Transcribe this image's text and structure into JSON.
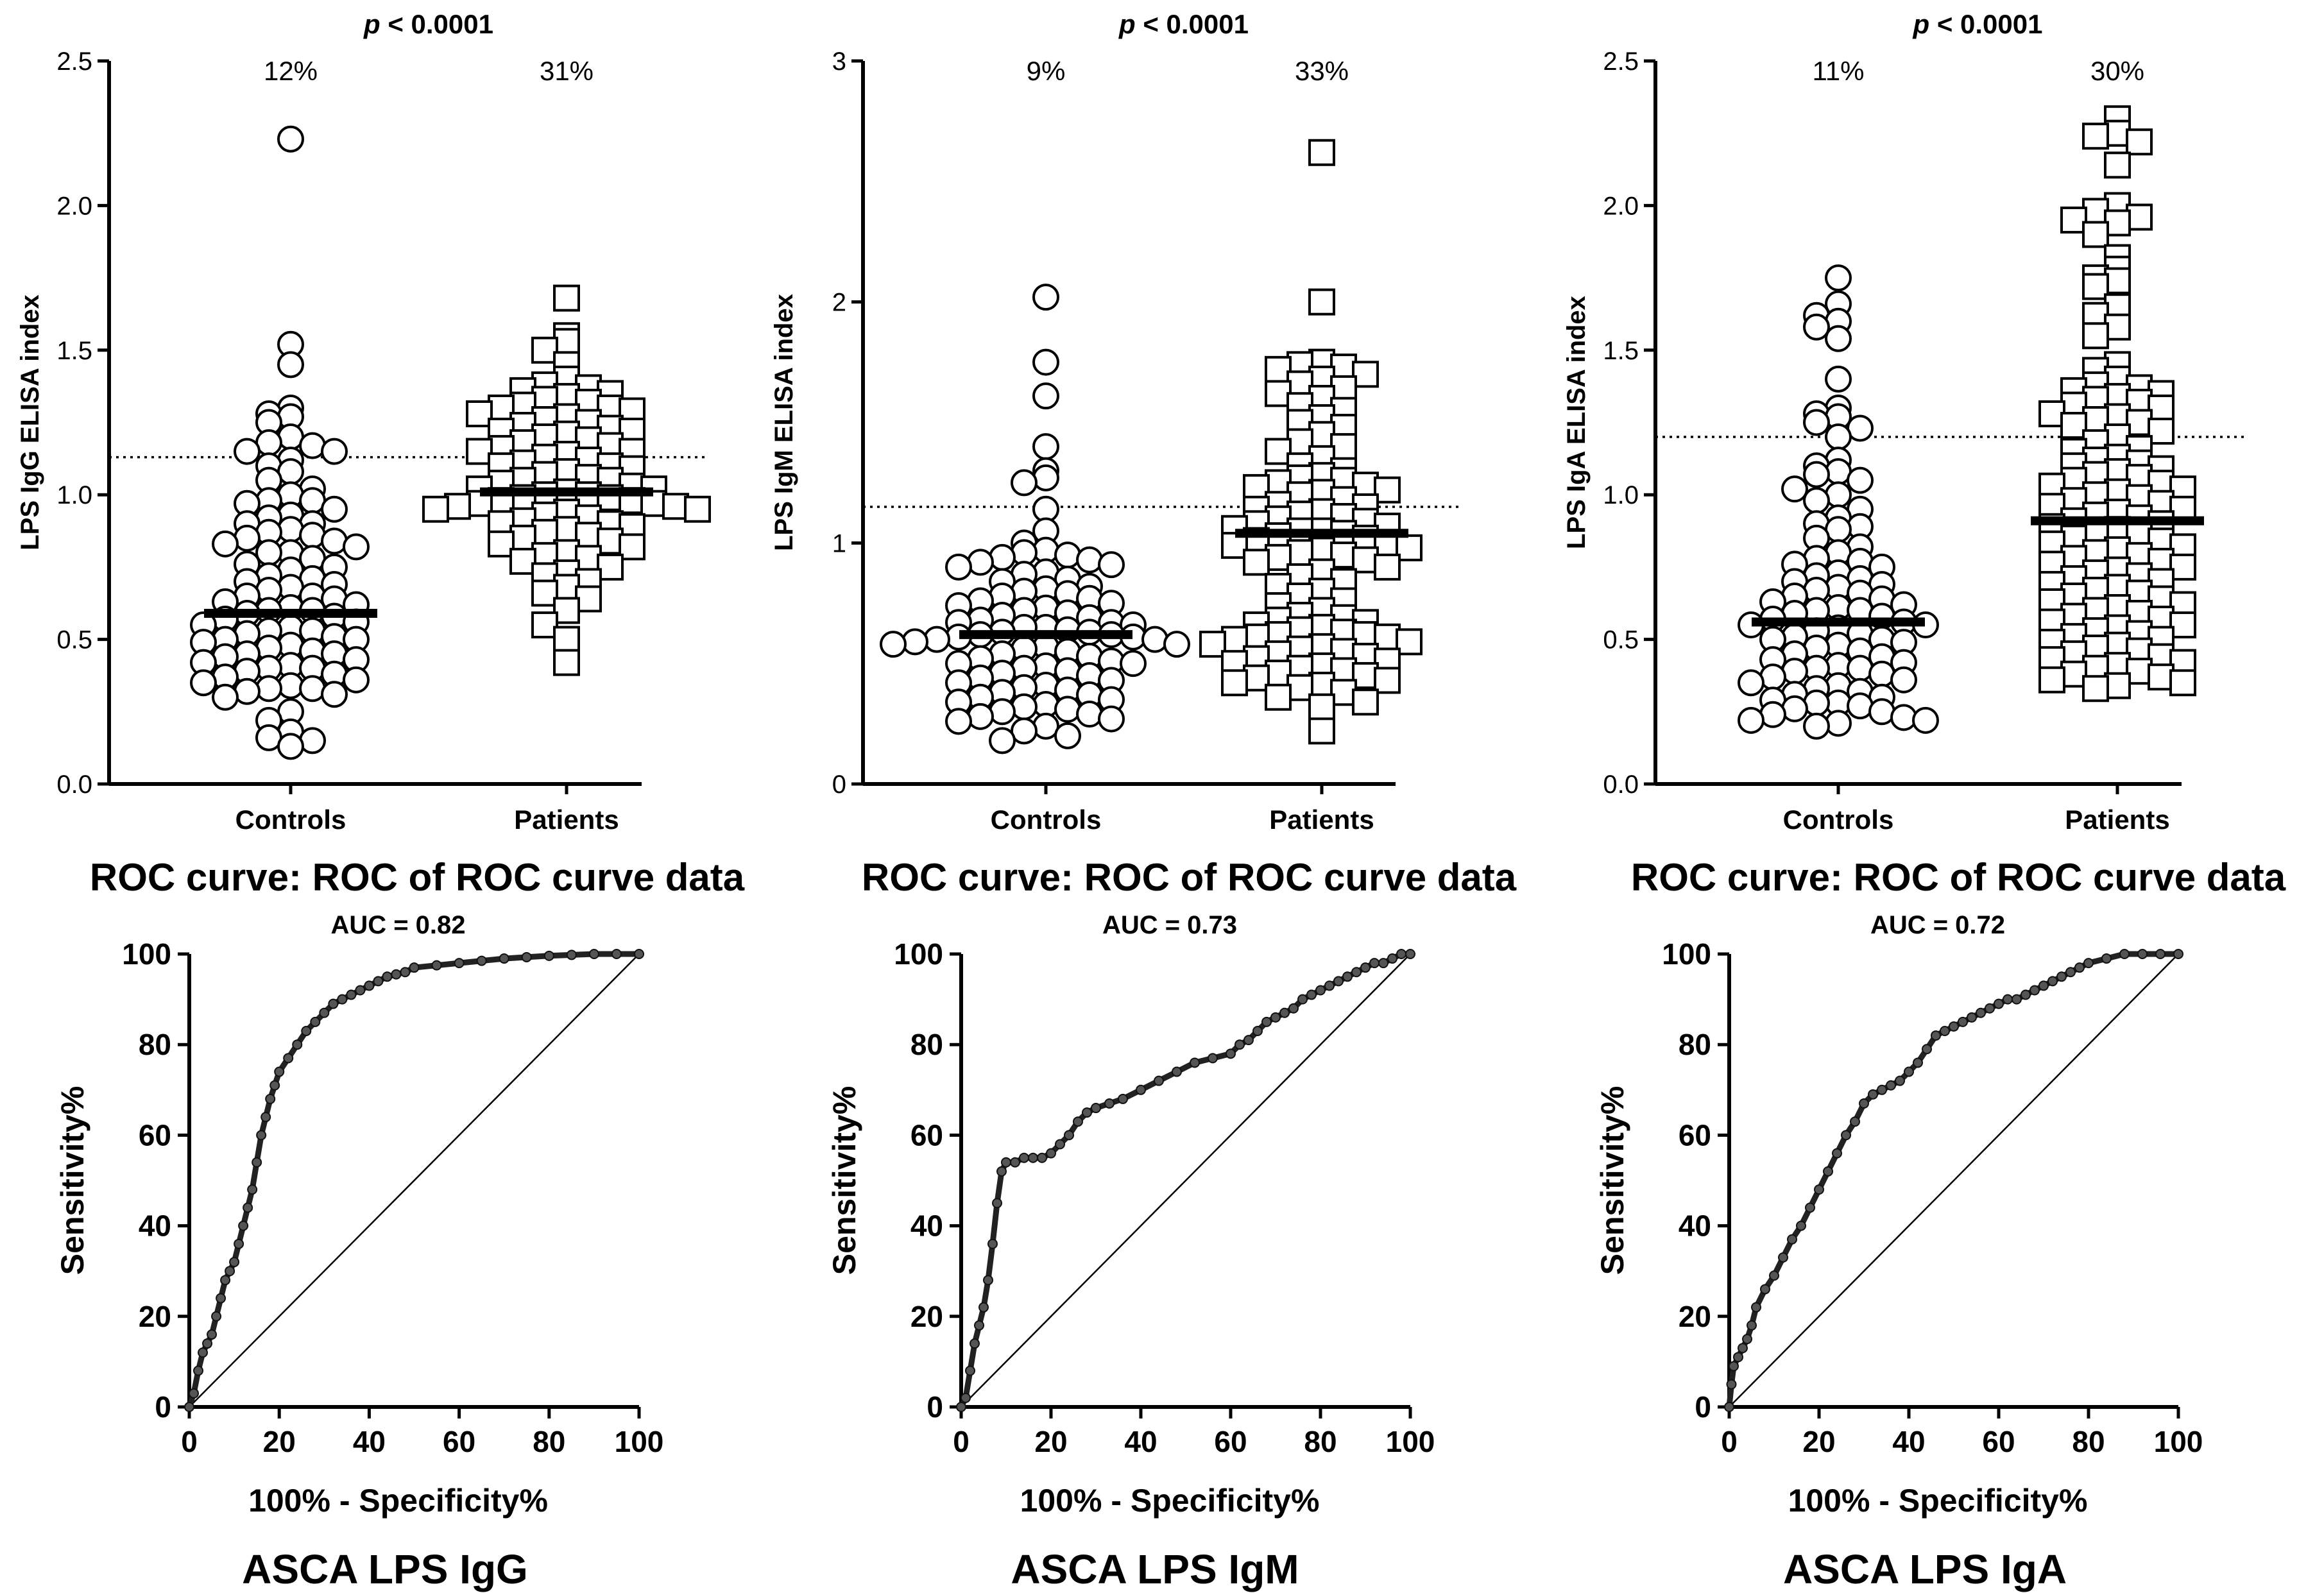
{
  "chart_data": [
    {
      "type": "scatter",
      "variant": "dot-plot",
      "id": "igg-dot",
      "pvalue_prefix": "p",
      "pvalue_rest": " < 0.0001",
      "ylabel": "LPS IgG ELISA index",
      "ylim": [
        0,
        2.5
      ],
      "yticks": [
        0.0,
        0.5,
        1.0,
        1.5,
        2.0,
        2.5
      ],
      "ytick_labels": [
        "0.0",
        "0.5",
        "1.0",
        "1.5",
        "2.0",
        "2.5"
      ],
      "cutoff": 1.13,
      "groups": [
        {
          "name": "Controls",
          "marker": "circle",
          "percent": "12%",
          "median": 0.59,
          "values": [
            2.23,
            1.52,
            1.45,
            1.3,
            1.28,
            1.27,
            1.25,
            1.2,
            1.18,
            1.17,
            1.15,
            1.15,
            1.12,
            1.1,
            1.08,
            1.05,
            1.02,
            1.0,
            0.98,
            0.98,
            0.97,
            0.95,
            0.93,
            0.92,
            0.9,
            0.9,
            0.88,
            0.87,
            0.86,
            0.85,
            0.84,
            0.83,
            0.82,
            0.8,
            0.8,
            0.78,
            0.76,
            0.75,
            0.74,
            0.72,
            0.71,
            0.7,
            0.69,
            0.68,
            0.67,
            0.65,
            0.65,
            0.64,
            0.63,
            0.62,
            0.61,
            0.6,
            0.6,
            0.59,
            0.58,
            0.57,
            0.56,
            0.55,
            0.54,
            0.53,
            0.53,
            0.52,
            0.51,
            0.5,
            0.5,
            0.49,
            0.48,
            0.47,
            0.46,
            0.45,
            0.45,
            0.44,
            0.43,
            0.42,
            0.41,
            0.4,
            0.4,
            0.39,
            0.38,
            0.37,
            0.36,
            0.35,
            0.34,
            0.33,
            0.33,
            0.32,
            0.31,
            0.3,
            0.25,
            0.22,
            0.18,
            0.16,
            0.15,
            0.13
          ]
        },
        {
          "name": "Patients",
          "marker": "square",
          "percent": "31%",
          "median": 1.01,
          "values": [
            1.68,
            1.55,
            1.53,
            1.5,
            1.45,
            1.4,
            1.38,
            1.37,
            1.36,
            1.35,
            1.34,
            1.33,
            1.32,
            1.31,
            1.3,
            1.3,
            1.29,
            1.28,
            1.27,
            1.26,
            1.25,
            1.24,
            1.23,
            1.22,
            1.22,
            1.21,
            1.2,
            1.19,
            1.18,
            1.17,
            1.16,
            1.15,
            1.15,
            1.14,
            1.13,
            1.12,
            1.11,
            1.1,
            1.1,
            1.09,
            1.08,
            1.07,
            1.06,
            1.05,
            1.05,
            1.04,
            1.03,
            1.02,
            1.02,
            1.01,
            1.0,
            1.0,
            0.99,
            0.99,
            0.98,
            0.98,
            0.97,
            0.97,
            0.96,
            0.96,
            0.95,
            0.95,
            0.94,
            0.93,
            0.92,
            0.91,
            0.9,
            0.9,
            0.89,
            0.88,
            0.87,
            0.86,
            0.85,
            0.84,
            0.83,
            0.82,
            0.8,
            0.79,
            0.78,
            0.77,
            0.75,
            0.73,
            0.72,
            0.7,
            0.68,
            0.66,
            0.64,
            0.6,
            0.55,
            0.5,
            0.42
          ]
        }
      ]
    },
    {
      "type": "scatter",
      "variant": "dot-plot",
      "id": "igm-dot",
      "pvalue_prefix": "p",
      "pvalue_rest": " < 0.0001",
      "ylabel": "LPS IgM ELISA index",
      "ylim": [
        0,
        3
      ],
      "yticks": [
        0,
        1,
        2,
        3
      ],
      "ytick_labels": [
        "0",
        "1",
        "2",
        "3"
      ],
      "cutoff": 1.15,
      "groups": [
        {
          "name": "Controls",
          "marker": "circle",
          "percent": "9%",
          "median": 0.62,
          "values": [
            2.02,
            1.75,
            1.61,
            1.4,
            1.3,
            1.27,
            1.25,
            1.14,
            1.05,
            1.0,
            0.97,
            0.96,
            0.95,
            0.94,
            0.93,
            0.92,
            0.91,
            0.9,
            0.88,
            0.87,
            0.85,
            0.84,
            0.82,
            0.81,
            0.8,
            0.79,
            0.78,
            0.77,
            0.76,
            0.75,
            0.74,
            0.73,
            0.72,
            0.71,
            0.7,
            0.69,
            0.68,
            0.67,
            0.67,
            0.66,
            0.65,
            0.65,
            0.64,
            0.63,
            0.63,
            0.62,
            0.62,
            0.61,
            0.61,
            0.6,
            0.6,
            0.59,
            0.58,
            0.58,
            0.57,
            0.56,
            0.55,
            0.54,
            0.53,
            0.52,
            0.51,
            0.5,
            0.5,
            0.49,
            0.48,
            0.47,
            0.46,
            0.45,
            0.44,
            0.43,
            0.42,
            0.41,
            0.4,
            0.39,
            0.38,
            0.37,
            0.36,
            0.35,
            0.34,
            0.33,
            0.32,
            0.31,
            0.3,
            0.29,
            0.28,
            0.27,
            0.26,
            0.24,
            0.22,
            0.2,
            0.18
          ]
        },
        {
          "name": "Patients",
          "marker": "square",
          "percent": "33%",
          "median": 1.04,
          "values": [
            2.62,
            2.0,
            1.75,
            1.74,
            1.73,
            1.72,
            1.7,
            1.68,
            1.66,
            1.64,
            1.62,
            1.6,
            1.57,
            1.55,
            1.52,
            1.5,
            1.48,
            1.45,
            1.42,
            1.4,
            1.38,
            1.35,
            1.32,
            1.3,
            1.28,
            1.27,
            1.26,
            1.25,
            1.24,
            1.23,
            1.22,
            1.21,
            1.2,
            1.18,
            1.16,
            1.15,
            1.14,
            1.13,
            1.12,
            1.11,
            1.1,
            1.09,
            1.08,
            1.07,
            1.06,
            1.05,
            1.05,
            1.04,
            1.03,
            1.02,
            1.01,
            1.0,
            0.99,
            0.98,
            0.97,
            0.96,
            0.95,
            0.94,
            0.93,
            0.92,
            0.9,
            0.88,
            0.86,
            0.84,
            0.82,
            0.8,
            0.78,
            0.76,
            0.74,
            0.72,
            0.7,
            0.69,
            0.68,
            0.67,
            0.66,
            0.65,
            0.64,
            0.63,
            0.62,
            0.62,
            0.61,
            0.61,
            0.6,
            0.59,
            0.58,
            0.57,
            0.56,
            0.55,
            0.54,
            0.53,
            0.52,
            0.51,
            0.5,
            0.49,
            0.48,
            0.47,
            0.46,
            0.45,
            0.44,
            0.43,
            0.42,
            0.41,
            0.4,
            0.38,
            0.36,
            0.34,
            0.32,
            0.22
          ]
        }
      ]
    },
    {
      "type": "scatter",
      "variant": "dot-plot",
      "id": "iga-dot",
      "pvalue_prefix": "p",
      "pvalue_rest": " < 0.0001",
      "ylabel": "LPS IgA ELISA index",
      "ylim": [
        0,
        2.5
      ],
      "yticks": [
        0.0,
        0.5,
        1.0,
        1.5,
        2.0,
        2.5
      ],
      "ytick_labels": [
        "0.0",
        "0.5",
        "1.0",
        "1.5",
        "2.0",
        "2.5"
      ],
      "cutoff": 1.2,
      "groups": [
        {
          "name": "Controls",
          "marker": "circle",
          "percent": "11%",
          "median": 0.56,
          "values": [
            1.75,
            1.66,
            1.62,
            1.6,
            1.58,
            1.54,
            1.4,
            1.3,
            1.28,
            1.27,
            1.25,
            1.23,
            1.2,
            1.12,
            1.1,
            1.08,
            1.07,
            1.05,
            1.02,
            1.0,
            0.98,
            0.95,
            0.92,
            0.9,
            0.89,
            0.88,
            0.85,
            0.82,
            0.8,
            0.78,
            0.77,
            0.76,
            0.75,
            0.73,
            0.72,
            0.71,
            0.7,
            0.69,
            0.68,
            0.67,
            0.66,
            0.65,
            0.64,
            0.63,
            0.62,
            0.61,
            0.6,
            0.6,
            0.59,
            0.58,
            0.57,
            0.56,
            0.55,
            0.55,
            0.54,
            0.53,
            0.52,
            0.51,
            0.5,
            0.5,
            0.49,
            0.48,
            0.47,
            0.46,
            0.45,
            0.44,
            0.43,
            0.42,
            0.41,
            0.4,
            0.4,
            0.39,
            0.38,
            0.37,
            0.36,
            0.35,
            0.34,
            0.33,
            0.32,
            0.31,
            0.3,
            0.29,
            0.28,
            0.28,
            0.27,
            0.26,
            0.25,
            0.24,
            0.23,
            0.22,
            0.22,
            0.21,
            0.2
          ]
        },
        {
          "name": "Patients",
          "marker": "square",
          "percent": "30%",
          "median": 0.91,
          "values": [
            2.3,
            2.25,
            2.24,
            2.22,
            2.14,
            2.0,
            1.98,
            1.96,
            1.95,
            1.94,
            1.9,
            1.82,
            1.78,
            1.75,
            1.74,
            1.72,
            1.65,
            1.62,
            1.58,
            1.55,
            1.45,
            1.43,
            1.4,
            1.38,
            1.37,
            1.36,
            1.35,
            1.34,
            1.33,
            1.32,
            1.31,
            1.3,
            1.28,
            1.27,
            1.26,
            1.25,
            1.24,
            1.22,
            1.2,
            1.18,
            1.16,
            1.15,
            1.13,
            1.12,
            1.11,
            1.1,
            1.09,
            1.08,
            1.07,
            1.06,
            1.05,
            1.04,
            1.03,
            1.02,
            1.01,
            1.0,
            0.99,
            0.98,
            0.97,
            0.96,
            0.95,
            0.94,
            0.93,
            0.92,
            0.91,
            0.9,
            0.89,
            0.88,
            0.87,
            0.86,
            0.85,
            0.84,
            0.83,
            0.82,
            0.81,
            0.8,
            0.79,
            0.78,
            0.77,
            0.76,
            0.75,
            0.74,
            0.73,
            0.72,
            0.71,
            0.7,
            0.69,
            0.68,
            0.67,
            0.66,
            0.65,
            0.64,
            0.63,
            0.62,
            0.61,
            0.6,
            0.59,
            0.58,
            0.57,
            0.56,
            0.55,
            0.54,
            0.53,
            0.52,
            0.51,
            0.5,
            0.49,
            0.48,
            0.47,
            0.46,
            0.45,
            0.44,
            0.43,
            0.42,
            0.41,
            0.4,
            0.39,
            0.38,
            0.37,
            0.36,
            0.35,
            0.34,
            0.33
          ]
        }
      ]
    },
    {
      "type": "line",
      "variant": "roc",
      "id": "igg-roc",
      "title": "ROC curve: ROC of ROC curve data",
      "auc_label": "AUC = 0.82",
      "xlabel": "100% - Specificity%",
      "ylabel": "Sensitivity%",
      "caption": "ASCA LPS IgG",
      "xlim": [
        0,
        100
      ],
      "ylim": [
        0,
        100
      ],
      "ticks": [
        0,
        20,
        40,
        60,
        80,
        100
      ],
      "x": [
        0,
        1,
        2,
        3,
        4,
        5,
        6,
        7,
        8,
        9,
        10,
        11,
        12,
        13,
        14,
        15,
        16,
        17,
        18,
        19,
        20,
        22,
        24,
        26,
        28,
        30,
        32,
        34,
        36,
        38,
        40,
        42,
        44,
        46,
        48,
        50,
        55,
        60,
        65,
        70,
        75,
        80,
        85,
        90,
        95,
        100
      ],
      "y": [
        0,
        3,
        8,
        12,
        14,
        16,
        20,
        24,
        28,
        30,
        32,
        36,
        40,
        44,
        48,
        54,
        60,
        64,
        68,
        71,
        74,
        77,
        80,
        83,
        85,
        87,
        89,
        90,
        91,
        92,
        93,
        94,
        95,
        95.5,
        96,
        97,
        97.5,
        98,
        98.5,
        99,
        99.3,
        99.6,
        99.8,
        100,
        100,
        100
      ]
    },
    {
      "type": "line",
      "variant": "roc",
      "id": "igm-roc",
      "title": "ROC curve: ROC of ROC curve data",
      "auc_label": "AUC = 0.73",
      "xlabel": "100% - Specificity%",
      "ylabel": "Sensitivity%",
      "caption": "ASCA LPS IgM",
      "xlim": [
        0,
        100
      ],
      "ylim": [
        0,
        100
      ],
      "ticks": [
        0,
        20,
        40,
        60,
        80,
        100
      ],
      "x": [
        0,
        1,
        2,
        3,
        4,
        5,
        6,
        7,
        8,
        9,
        10,
        12,
        14,
        16,
        18,
        20,
        22,
        24,
        26,
        28,
        30,
        33,
        36,
        40,
        44,
        48,
        52,
        56,
        60,
        62,
        64,
        66,
        68,
        70,
        72,
        74,
        76,
        78,
        80,
        82,
        84,
        86,
        88,
        90,
        92,
        94,
        96,
        98,
        100
      ],
      "y": [
        0,
        2,
        8,
        14,
        18,
        22,
        28,
        36,
        45,
        52,
        54,
        54,
        55,
        55,
        55,
        56,
        58,
        60,
        63,
        65,
        66,
        67,
        68,
        70,
        72,
        74,
        76,
        77,
        78,
        80,
        81,
        83,
        85,
        86,
        87,
        88,
        90,
        91,
        92,
        93,
        94,
        95,
        96,
        97,
        98,
        98,
        99,
        100,
        100
      ]
    },
    {
      "type": "line",
      "variant": "roc",
      "id": "iga-roc",
      "title": "ROC curve: ROC of ROC curve data",
      "auc_label": "AUC = 0.72",
      "xlabel": "100% - Specificity%",
      "ylabel": "Sensitivity%",
      "caption": "ASCA LPS IgA",
      "xlim": [
        0,
        100
      ],
      "ylim": [
        0,
        100
      ],
      "ticks": [
        0,
        20,
        40,
        60,
        80,
        100
      ],
      "x": [
        0,
        0.5,
        1,
        2,
        3,
        4,
        5,
        6,
        8,
        10,
        12,
        14,
        16,
        18,
        20,
        22,
        24,
        26,
        28,
        30,
        32,
        34,
        36,
        38,
        40,
        42,
        44,
        46,
        48,
        50,
        52,
        54,
        56,
        58,
        60,
        62,
        64,
        66,
        68,
        70,
        72,
        74,
        76,
        78,
        80,
        84,
        88,
        92,
        96,
        100
      ],
      "y": [
        0,
        5,
        9,
        11,
        13,
        15,
        18,
        22,
        26,
        29,
        33,
        37,
        40,
        44,
        48,
        52,
        56,
        60,
        63,
        67,
        69,
        70,
        71,
        72,
        74,
        76,
        79,
        82,
        83,
        84,
        85,
        86,
        87,
        88,
        89,
        90,
        90,
        91,
        92,
        93,
        94,
        95,
        96,
        97,
        98,
        99,
        100,
        100,
        100,
        100
      ]
    }
  ]
}
